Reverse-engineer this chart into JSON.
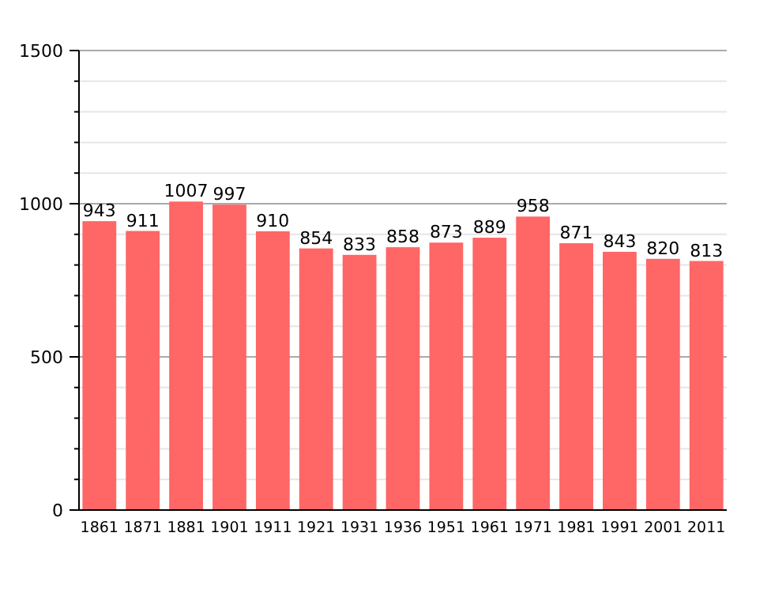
{
  "chart_data": {
    "type": "bar",
    "categories": [
      "1861",
      "1871",
      "1881",
      "1901",
      "1911",
      "1921",
      "1931",
      "1936",
      "1951",
      "1961",
      "1971",
      "1981",
      "1991",
      "2001",
      "2011"
    ],
    "values": [
      943,
      911,
      1007,
      997,
      910,
      854,
      833,
      858,
      873,
      889,
      958,
      871,
      843,
      820,
      813
    ],
    "color": "#ff6666",
    "ylim": [
      0,
      1500
    ],
    "yticks": [
      0,
      {
        "value": 100,
        "label": null
      },
      {
        "value": 200,
        "label": null
      },
      {
        "value": 300,
        "label": null
      },
      {
        "value": 400,
        "label": null
      },
      500,
      {
        "value": 600,
        "label": null
      },
      {
        "value": 700,
        "label": null
      },
      {
        "value": 800,
        "label": null
      },
      {
        "value": 900,
        "label": null
      },
      1000,
      {
        "value": 1100,
        "label": null
      },
      {
        "value": 1200,
        "label": null
      },
      {
        "value": 1300,
        "label": null
      },
      {
        "value": 1400,
        "label": null
      },
      1500
    ],
    "grid": "y",
    "data_labels": true
  }
}
